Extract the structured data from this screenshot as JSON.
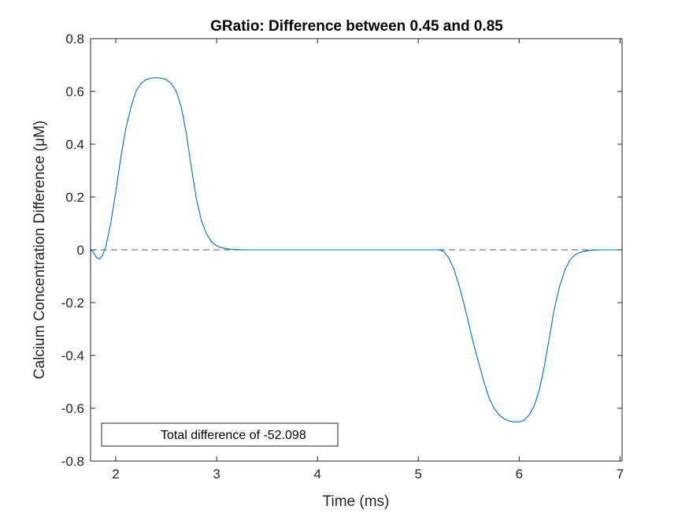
{
  "chart_data": {
    "type": "line",
    "title": "GRatio: Difference between 0.45 and 0.85",
    "xlabel": "Time (ms)",
    "ylabel": "Calcium Concentration Difference (μM)",
    "xlim": [
      1.75,
      7.02
    ],
    "ylim": [
      -0.8,
      0.8
    ],
    "x_ticks": [
      2,
      3,
      4,
      5,
      6,
      7
    ],
    "x_tick_labels": [
      "2",
      "3",
      "4",
      "5",
      "6",
      "7"
    ],
    "y_ticks": [
      -0.8,
      -0.6,
      -0.4,
      -0.2,
      0,
      0.2,
      0.4,
      0.6,
      0.8
    ],
    "y_tick_labels": [
      "-0.8",
      "-0.6",
      "-0.4",
      "-0.2",
      "0",
      "0.2",
      "0.4",
      "0.6",
      "0.8"
    ],
    "grid": false,
    "legend": {
      "location": "bottom-left",
      "entries": [
        "Total difference of -52.098"
      ]
    },
    "reference_line": {
      "y": 0,
      "style": "dashed",
      "color": "#5a5a5a"
    },
    "series": [
      {
        "name": "Total difference of -52.098",
        "color": "#0072bd",
        "x": [
          1.75,
          1.78,
          1.81,
          1.84,
          1.87,
          1.9,
          1.95,
          2.0,
          2.05,
          2.1,
          2.15,
          2.2,
          2.25,
          2.3,
          2.35,
          2.4,
          2.45,
          2.5,
          2.55,
          2.6,
          2.65,
          2.7,
          2.75,
          2.8,
          2.85,
          2.9,
          2.95,
          3.0,
          3.05,
          3.1,
          3.15,
          3.2,
          3.3,
          3.5,
          4.0,
          4.5,
          5.0,
          5.2,
          5.25,
          5.3,
          5.35,
          5.4,
          5.45,
          5.5,
          5.55,
          5.6,
          5.65,
          5.7,
          5.75,
          5.8,
          5.85,
          5.9,
          5.95,
          6.0,
          6.05,
          6.1,
          6.15,
          6.2,
          6.25,
          6.3,
          6.35,
          6.4,
          6.45,
          6.5,
          6.55,
          6.6,
          6.65,
          6.7,
          6.8,
          6.9,
          7.02
        ],
        "y": [
          0.0,
          -0.01,
          -0.03,
          -0.035,
          -0.02,
          0.01,
          0.1,
          0.22,
          0.35,
          0.46,
          0.54,
          0.6,
          0.63,
          0.645,
          0.65,
          0.652,
          0.65,
          0.645,
          0.63,
          0.6,
          0.54,
          0.44,
          0.31,
          0.19,
          0.11,
          0.06,
          0.03,
          0.015,
          0.008,
          0.004,
          0.002,
          0.001,
          0.0,
          0.0,
          0.0,
          0.0,
          0.0,
          0.0,
          -0.005,
          -0.03,
          -0.07,
          -0.13,
          -0.2,
          -0.28,
          -0.36,
          -0.43,
          -0.5,
          -0.56,
          -0.6,
          -0.625,
          -0.64,
          -0.648,
          -0.652,
          -0.652,
          -0.645,
          -0.625,
          -0.59,
          -0.53,
          -0.44,
          -0.33,
          -0.22,
          -0.14,
          -0.08,
          -0.04,
          -0.02,
          -0.01,
          -0.005,
          -0.002,
          -0.0,
          0.0,
          0.0
        ]
      }
    ]
  }
}
